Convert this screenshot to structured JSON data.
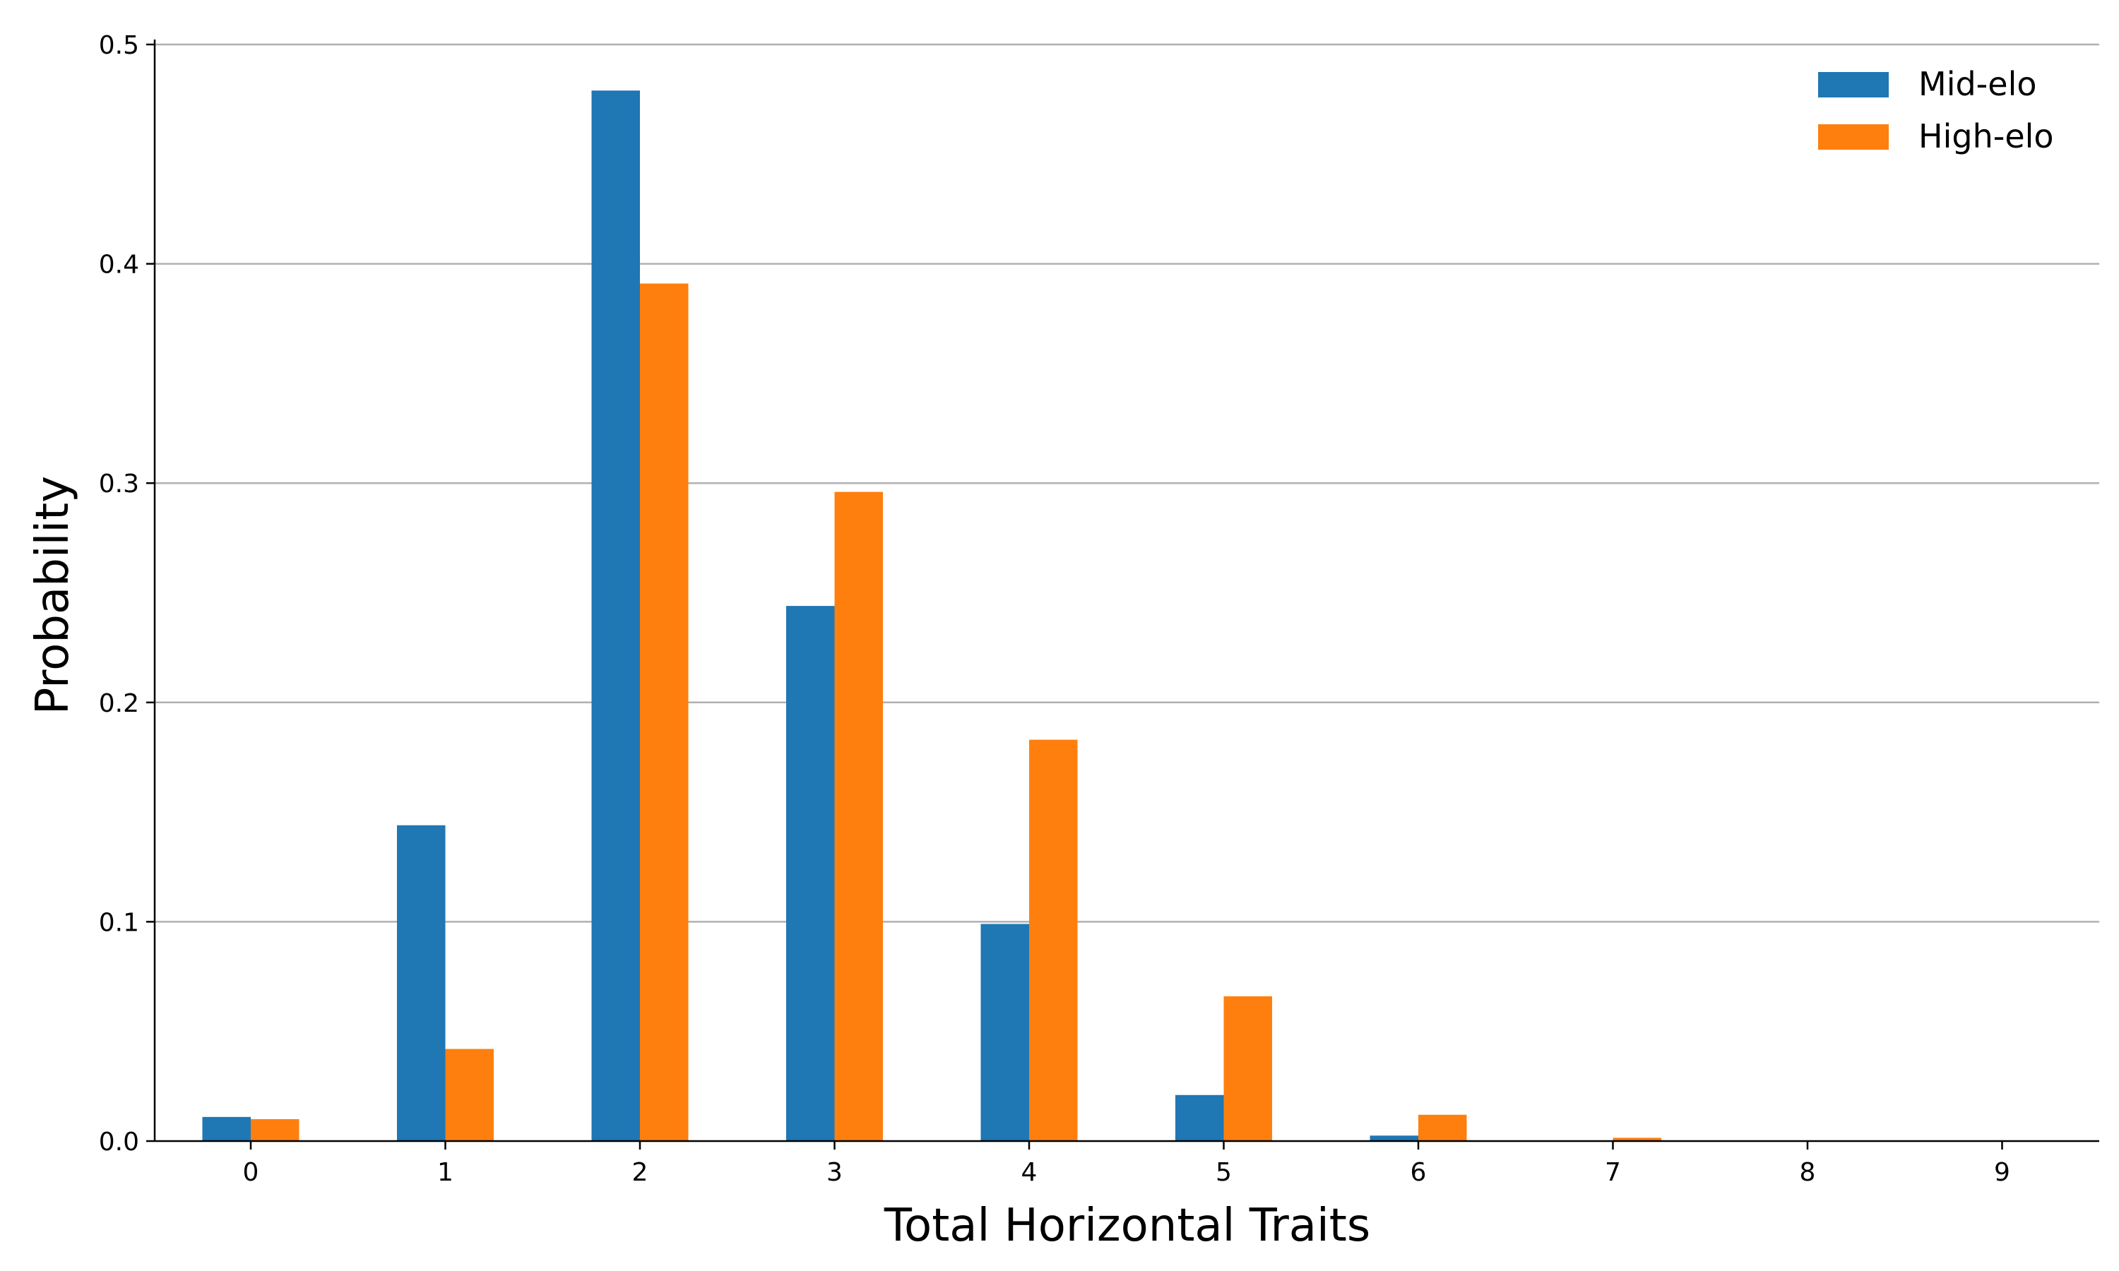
{
  "chart_data": {
    "type": "bar",
    "categories": [
      "0",
      "1",
      "2",
      "3",
      "4",
      "5",
      "6",
      "7",
      "8",
      "9"
    ],
    "series": [
      {
        "name": "Mid-elo",
        "color": "#1f77b4",
        "values": [
          0.011,
          0.144,
          0.479,
          0.244,
          0.099,
          0.021,
          0.0025,
          0.0002,
          0.0,
          0.0
        ]
      },
      {
        "name": "High-elo",
        "color": "#ff7f0e",
        "values": [
          0.01,
          0.042,
          0.391,
          0.296,
          0.183,
          0.066,
          0.012,
          0.0015,
          0.0001,
          0.0
        ]
      }
    ],
    "title": "",
    "xlabel": "Total Horizontal Traits",
    "ylabel": "Probability",
    "ylim": [
      0,
      0.5
    ],
    "yticks": [
      "0.0",
      "0.1",
      "0.2",
      "0.3",
      "0.4",
      "0.5"
    ],
    "grid": "horizontal",
    "legend_position": "top-right"
  }
}
